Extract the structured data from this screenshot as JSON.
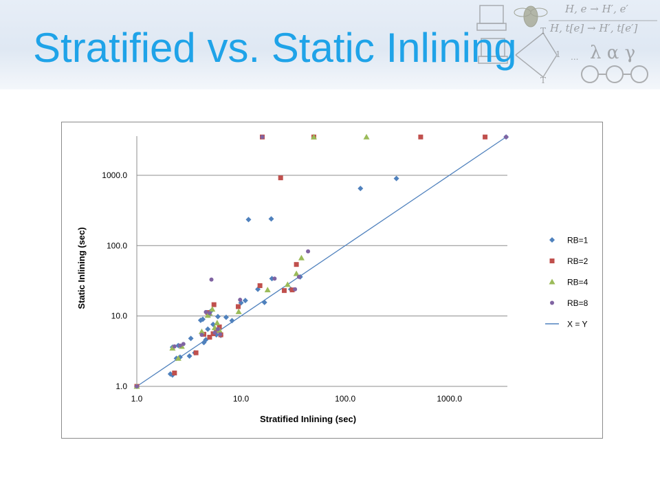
{
  "slide": {
    "title": "Stratified vs. Static Inlining"
  },
  "decor": {
    "rule_top": "H, e  → H′, e′",
    "rule_bottom": "H, t[e]  → H′, t[e′]",
    "symbols": "λ α γ",
    "lattice_top": "T",
    "lattice_mid": "1",
    "lattice_bottom": "T",
    "dots": "..."
  },
  "chart_data": {
    "type": "scatter",
    "title": "",
    "xlabel": "Stratified Inlining (sec)",
    "ylabel": "Static Inlining (sec)",
    "xscale": "log",
    "yscale": "log",
    "xlim": [
      1.0,
      3600
    ],
    "ylim": [
      1.0,
      3600
    ],
    "xticks": [
      1.0,
      10.0,
      100.0,
      1000.0
    ],
    "xtick_labels": [
      "1.0",
      "10.0",
      "100.0",
      "1000.0"
    ],
    "yticks": [
      1.0,
      10.0,
      100.0,
      1000.0
    ],
    "ytick_labels": [
      "1.0",
      "10.0",
      "100.0",
      "1000.0"
    ],
    "grid": "horizontal",
    "legend_position": "right",
    "series": [
      {
        "name": "RB=1",
        "marker": "diamond",
        "color": "#4f81bd",
        "points": [
          [
            1.0,
            1.0
          ],
          [
            2.1,
            1.5
          ],
          [
            2.2,
            1.45
          ],
          [
            2.2,
            3.6
          ],
          [
            2.4,
            2.5
          ],
          [
            2.5,
            3.8
          ],
          [
            2.6,
            2.6
          ],
          [
            3.2,
            2.7
          ],
          [
            3.3,
            4.8
          ],
          [
            3.6,
            3.0
          ],
          [
            4.1,
            8.7
          ],
          [
            4.3,
            9.0
          ],
          [
            4.4,
            4.2
          ],
          [
            4.6,
            4.6
          ],
          [
            4.8,
            6.5
          ],
          [
            4.9,
            10.3
          ],
          [
            5.1,
            11.6
          ],
          [
            5.4,
            7.6
          ],
          [
            5.8,
            5.4
          ],
          [
            6.0,
            9.8
          ],
          [
            6.4,
            5.3
          ],
          [
            7.2,
            9.6
          ],
          [
            8.2,
            8.6
          ],
          [
            10.0,
            15.4
          ],
          [
            11.0,
            16.6
          ],
          [
            11.8,
            235
          ],
          [
            14.5,
            24.0
          ],
          [
            16.8,
            15.6
          ],
          [
            19.5,
            240
          ],
          [
            19.8,
            34.0
          ],
          [
            30.0,
            24.0
          ],
          [
            37.0,
            36.0
          ],
          [
            140,
            650
          ],
          [
            310,
            900
          ],
          [
            3500,
            3500
          ]
        ]
      },
      {
        "name": "RB=2",
        "marker": "square",
        "color": "#c0504d",
        "points": [
          [
            1.0,
            1.0
          ],
          [
            2.3,
            1.55
          ],
          [
            3.7,
            3.0
          ],
          [
            4.4,
            5.5
          ],
          [
            4.8,
            11.2
          ],
          [
            5.0,
            5.0
          ],
          [
            5.4,
            5.6
          ],
          [
            5.5,
            14.5
          ],
          [
            5.8,
            6.2
          ],
          [
            6.2,
            7.0
          ],
          [
            6.4,
            5.4
          ],
          [
            9.4,
            13.6
          ],
          [
            15.2,
            27.0
          ],
          [
            16.0,
            3500
          ],
          [
            24.0,
            920
          ],
          [
            26.0,
            23.0
          ],
          [
            31.0,
            23.5
          ],
          [
            34.0,
            54.0
          ],
          [
            50.0,
            3500
          ],
          [
            530,
            3500
          ],
          [
            2200,
            3500
          ]
        ]
      },
      {
        "name": "RB=4",
        "marker": "triangle",
        "color": "#9bbb59",
        "points": [
          [
            1.0,
            1.0
          ],
          [
            2.2,
            3.5
          ],
          [
            2.5,
            2.5
          ],
          [
            2.7,
            3.7
          ],
          [
            4.2,
            6.0
          ],
          [
            4.8,
            10.2
          ],
          [
            5.0,
            11.0
          ],
          [
            5.3,
            12.5
          ],
          [
            5.6,
            6.8
          ],
          [
            5.9,
            8.0
          ],
          [
            6.2,
            6.3
          ],
          [
            9.5,
            11.5
          ],
          [
            18.0,
            23.5
          ],
          [
            28.0,
            28.0
          ],
          [
            34.0,
            40.0
          ],
          [
            38.0,
            67.0
          ],
          [
            50.0,
            3500
          ],
          [
            160,
            3500
          ]
        ]
      },
      {
        "name": "RB=8",
        "marker": "circle",
        "color": "#8064a2",
        "points": [
          [
            1.0,
            1.0
          ],
          [
            2.3,
            3.7
          ],
          [
            2.6,
            3.8
          ],
          [
            2.8,
            4.0
          ],
          [
            4.2,
            5.4
          ],
          [
            4.6,
            11.4
          ],
          [
            5.0,
            11.0
          ],
          [
            5.2,
            33.0
          ],
          [
            5.6,
            5.8
          ],
          [
            6.0,
            6.5
          ],
          [
            6.3,
            5.5
          ],
          [
            9.8,
            17.0
          ],
          [
            21.0,
            34.0
          ],
          [
            33.0,
            24.0
          ],
          [
            36.0,
            36.0
          ],
          [
            44.0,
            83.0
          ],
          [
            16.0,
            3500
          ],
          [
            3500,
            3500
          ]
        ]
      },
      {
        "name": "X = Y",
        "type": "line",
        "color": "#4f81bd",
        "points": [
          [
            1.0,
            1.0
          ],
          [
            3500,
            3500
          ]
        ]
      }
    ]
  }
}
